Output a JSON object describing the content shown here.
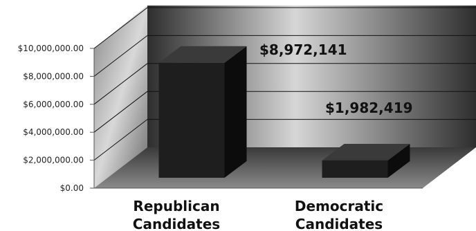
{
  "chart_data": {
    "type": "bar",
    "style": "3d",
    "categories": [
      "Republican Candidates",
      "Democratic Candidates"
    ],
    "category_lines": [
      [
        "Republican",
        "Candidates"
      ],
      [
        "Democratic",
        "Candidates"
      ]
    ],
    "values": [
      8972141,
      1982419
    ],
    "data_labels": [
      "$8,972,141",
      "$1,982,419"
    ],
    "y_ticks": [
      "$0.00",
      "$2,000,000.00",
      "$4,000,000.00",
      "$6,000,000.00",
      "$8,000,000.00",
      "$10,000,000.00"
    ],
    "ylim": [
      0,
      10000000
    ],
    "grid": true,
    "legend": "none",
    "colors": {
      "bar": "#1e1e1e",
      "bar_side": "#0c0c0c",
      "bar_top": "#3a3a3a",
      "wall_dark": "#2a2a2a",
      "wall_light": "#cfcfcf",
      "floor": "#5a5a5a"
    }
  }
}
